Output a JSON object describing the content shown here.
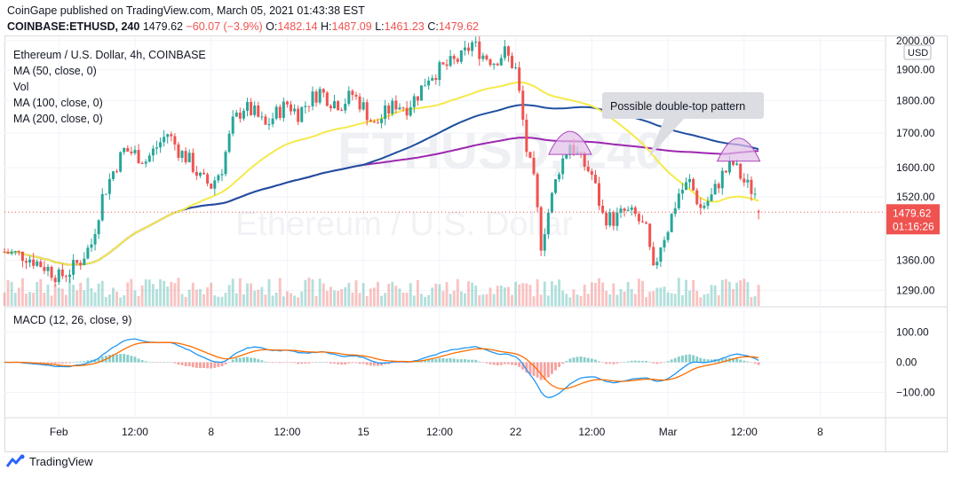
{
  "header": {
    "publisher_line": "CoinGape published on TradingView.com, March 05, 2021 01:43:38 EST",
    "symbol": "COINBASE:ETHUSD, 240",
    "last": "1479.62",
    "change": "−60.07 (−3.9%)",
    "o_label": "O:",
    "o_value": "1482.14",
    "h_label": "H:",
    "h_value": "1487.09",
    "l_label": "L:",
    "l_value": "1461.23",
    "c_label": "C:",
    "c_value": "1479.62"
  },
  "legend": {
    "title": "Ethereum / U.S. Dollar, 4h, COINBASE",
    "ma50": "MA (50, close, 0)",
    "vol": "Vol",
    "ma100": "MA (100, close, 0)",
    "ma200": "MA (200, close, 0)"
  },
  "macd_legend": "MACD (12, 26, close, 9)",
  "watermark": "ETHUSD, 240",
  "watermark_sub": "Ethereum / U.S. Dollar",
  "footer": {
    "brand": "TradingView"
  },
  "colors": {
    "up": "#26a69a",
    "down": "#ef5350",
    "ma50": "#f5e94a",
    "ma100": "#1f4fa0",
    "ma200": "#9c27b0",
    "macd": "#2196f3",
    "signal": "#ff6d00",
    "pattern_fill": "#e1bee7",
    "pattern_stroke": "#ab47bc"
  },
  "chart_data": {
    "type": "candlestick",
    "price_axis": {
      "unit": "USD",
      "ticks": [
        "2000.00",
        "1900.00",
        "1800.00",
        "1700.00",
        "1600.00",
        "1520.00",
        "1360.00",
        "1290.00"
      ],
      "tick_values": [
        2000,
        1900,
        1800,
        1700,
        1600,
        1520,
        1360,
        1290
      ],
      "range": [
        1255,
        2015
      ],
      "scale": "log",
      "last_price_label": "1479.62",
      "countdown_label": "01:16:26"
    },
    "macd_axis": {
      "ticks": [
        "100.00",
        "0.00",
        "−100.00"
      ],
      "tick_values": [
        100,
        0,
        -100
      ],
      "range": [
        -180,
        180
      ]
    },
    "time_axis": {
      "labels": [
        "Feb",
        "12:00",
        "8",
        "12:00",
        "15",
        "12:00",
        "22",
        "12:00",
        "Mar",
        "12:00",
        "8"
      ],
      "label_dates": [
        "2021-02-01",
        "2021-02-04 12:00",
        "2021-02-08",
        "2021-02-11 12:00",
        "2021-02-15",
        "2021-02-18 12:00",
        "2021-02-22",
        "2021-02-25 12:00",
        "2021-03-01",
        "2021-03-04 12:00",
        "2021-03-08"
      ],
      "range": [
        "2021-01-29 12:00",
        "2021-03-11 00:00"
      ],
      "bar_interval_hours": 4
    },
    "annotation": "Possible double-top pattern",
    "close_path": [
      [
        "2021-01-29 12:00",
        1380
      ],
      [
        "2021-01-30 12:00",
        1370
      ],
      [
        "2021-01-31 12:00",
        1340
      ],
      [
        "2021-02-01 00:00",
        1320
      ],
      [
        "2021-02-01 12:00",
        1335
      ],
      [
        "2021-02-02 00:00",
        1360
      ],
      [
        "2021-02-02 12:00",
        1400
      ],
      [
        "2021-02-03 00:00",
        1520
      ],
      [
        "2021-02-03 12:00",
        1590
      ],
      [
        "2021-02-04 00:00",
        1650
      ],
      [
        "2021-02-04 12:00",
        1640
      ],
      [
        "2021-02-05 00:00",
        1620
      ],
      [
        "2021-02-05 12:00",
        1660
      ],
      [
        "2021-02-06 00:00",
        1700
      ],
      [
        "2021-02-06 12:00",
        1650
      ],
      [
        "2021-02-07 00:00",
        1620
      ],
      [
        "2021-02-07 12:00",
        1570
      ],
      [
        "2021-02-08 00:00",
        1550
      ],
      [
        "2021-02-08 12:00",
        1600
      ],
      [
        "2021-02-09 00:00",
        1730
      ],
      [
        "2021-02-09 12:00",
        1780
      ],
      [
        "2021-02-10 00:00",
        1760
      ],
      [
        "2021-02-10 12:00",
        1720
      ],
      [
        "2021-02-11 00:00",
        1760
      ],
      [
        "2021-02-11 12:00",
        1790
      ],
      [
        "2021-02-12 00:00",
        1760
      ],
      [
        "2021-02-12 12:00",
        1800
      ],
      [
        "2021-02-13 00:00",
        1830
      ],
      [
        "2021-02-13 12:00",
        1800
      ],
      [
        "2021-02-14 00:00",
        1790
      ],
      [
        "2021-02-14 12:00",
        1820
      ],
      [
        "2021-02-15 00:00",
        1780
      ],
      [
        "2021-02-15 12:00",
        1720
      ],
      [
        "2021-02-16 00:00",
        1760
      ],
      [
        "2021-02-16 12:00",
        1790
      ],
      [
        "2021-02-17 00:00",
        1780
      ],
      [
        "2021-02-17 12:00",
        1820
      ],
      [
        "2021-02-18 00:00",
        1880
      ],
      [
        "2021-02-18 12:00",
        1900
      ],
      [
        "2021-02-19 00:00",
        1920
      ],
      [
        "2021-02-19 12:00",
        1940
      ],
      [
        "2021-02-20 00:00",
        1990
      ],
      [
        "2021-02-20 12:00",
        1950
      ],
      [
        "2021-02-21 00:00",
        1930
      ],
      [
        "2021-02-21 12:00",
        1960
      ],
      [
        "2021-02-22 00:00",
        1900
      ],
      [
        "2021-02-22 06:00",
        1780
      ],
      [
        "2021-02-22 12:00",
        1650
      ],
      [
        "2021-02-22 20:00",
        1560
      ],
      [
        "2021-02-23 04:00",
        1400
      ],
      [
        "2021-02-23 12:00",
        1480
      ],
      [
        "2021-02-24 00:00",
        1600
      ],
      [
        "2021-02-24 12:00",
        1670
      ],
      [
        "2021-02-25 00:00",
        1620
      ],
      [
        "2021-02-25 12:00",
        1580
      ],
      [
        "2021-02-26 00:00",
        1470
      ],
      [
        "2021-02-26 12:00",
        1460
      ],
      [
        "2021-02-27 00:00",
        1480
      ],
      [
        "2021-02-27 12:00",
        1470
      ],
      [
        "2021-02-28 00:00",
        1430
      ],
      [
        "2021-02-28 08:00",
        1330
      ],
      [
        "2021-02-28 16:00",
        1400
      ],
      [
        "2021-03-01 00:00",
        1440
      ],
      [
        "2021-03-01 12:00",
        1530
      ],
      [
        "2021-03-02 00:00",
        1560
      ],
      [
        "2021-03-02 12:00",
        1490
      ],
      [
        "2021-03-03 00:00",
        1520
      ],
      [
        "2021-03-03 12:00",
        1580
      ],
      [
        "2021-03-04 00:00",
        1610
      ],
      [
        "2021-03-04 12:00",
        1560
      ],
      [
        "2021-03-05 00:00",
        1530
      ],
      [
        "2021-03-05 04:00",
        1480
      ]
    ]
  }
}
